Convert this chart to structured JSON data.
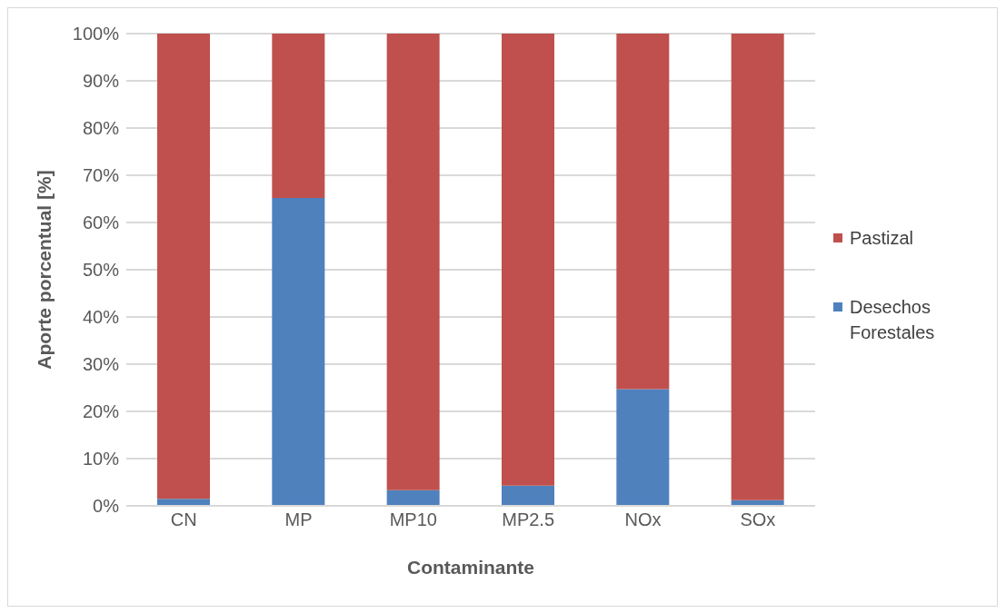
{
  "chart_data": {
    "type": "bar",
    "stacked": true,
    "xlabel": "Contaminante",
    "ylabel": "Aporte porcentual [%]",
    "categories": [
      "CN",
      "MP",
      "MP10",
      "MP2.5",
      "NOx",
      "SOx"
    ],
    "series": [
      {
        "name": "Desechos Forestales",
        "color": "#4f81bd",
        "values": [
          1.5,
          65.2,
          3.3,
          4.3,
          24.7,
          1.2
        ]
      },
      {
        "name": "Pastizal",
        "color": "#c0504d",
        "values": [
          98.5,
          34.8,
          96.7,
          95.7,
          75.3,
          98.8
        ]
      }
    ],
    "ylim": [
      0,
      100
    ],
    "yticks": [
      {
        "value": 0,
        "label": "0%"
      },
      {
        "value": 10,
        "label": "10%"
      },
      {
        "value": 20,
        "label": "20%"
      },
      {
        "value": 30,
        "label": "30%"
      },
      {
        "value": 40,
        "label": "40%"
      },
      {
        "value": 50,
        "label": "50%"
      },
      {
        "value": 60,
        "label": "60%"
      },
      {
        "value": 70,
        "label": "70%"
      },
      {
        "value": 80,
        "label": "80%"
      },
      {
        "value": 90,
        "label": "90%"
      },
      {
        "value": 100,
        "label": "100%"
      }
    ],
    "grid": "y",
    "legend": "right"
  }
}
